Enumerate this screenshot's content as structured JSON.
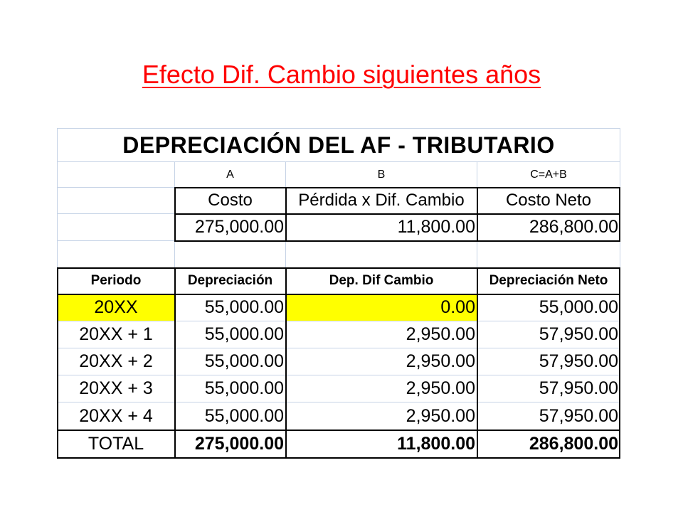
{
  "slide": {
    "title": "Efecto Dif. Cambio siguientes  años"
  },
  "sheet": {
    "title": "DEPRECIACIÓN DEL AF - TRIBUTARIO",
    "letters": [
      "A",
      "B",
      "C=A+B"
    ],
    "cost_headers": [
      "Costo",
      "Pérdida x Dif. Cambio",
      "Costo Neto"
    ],
    "cost_values": [
      "275,000.00",
      "11,800.00",
      "286,800.00"
    ],
    "table_headers": [
      "Periodo",
      "Depreciación",
      "Dep. Dif Cambio",
      "Depreciación Neto"
    ],
    "rows": [
      {
        "periodo": "20XX",
        "dep": "55,000.00",
        "dif": "0.00",
        "neto": "55,000.00"
      },
      {
        "periodo": "20XX + 1",
        "dep": "55,000.00",
        "dif": "2,950.00",
        "neto": "57,950.00"
      },
      {
        "periodo": "20XX + 2",
        "dep": "55,000.00",
        "dif": "2,950.00",
        "neto": "57,950.00"
      },
      {
        "periodo": "20XX + 3",
        "dep": "55,000.00",
        "dif": "2,950.00",
        "neto": "57,950.00"
      },
      {
        "periodo": "20XX + 4",
        "dep": "55,000.00",
        "dif": "2,950.00",
        "neto": "57,950.00"
      }
    ],
    "total": {
      "label": "TOTAL",
      "dep": "275,000.00",
      "dif": "11,800.00",
      "neto": "286,800.00"
    },
    "colors": {
      "highlight": "#ffff00",
      "title": "#ff0000",
      "gridline": "#c6d3e6"
    }
  }
}
